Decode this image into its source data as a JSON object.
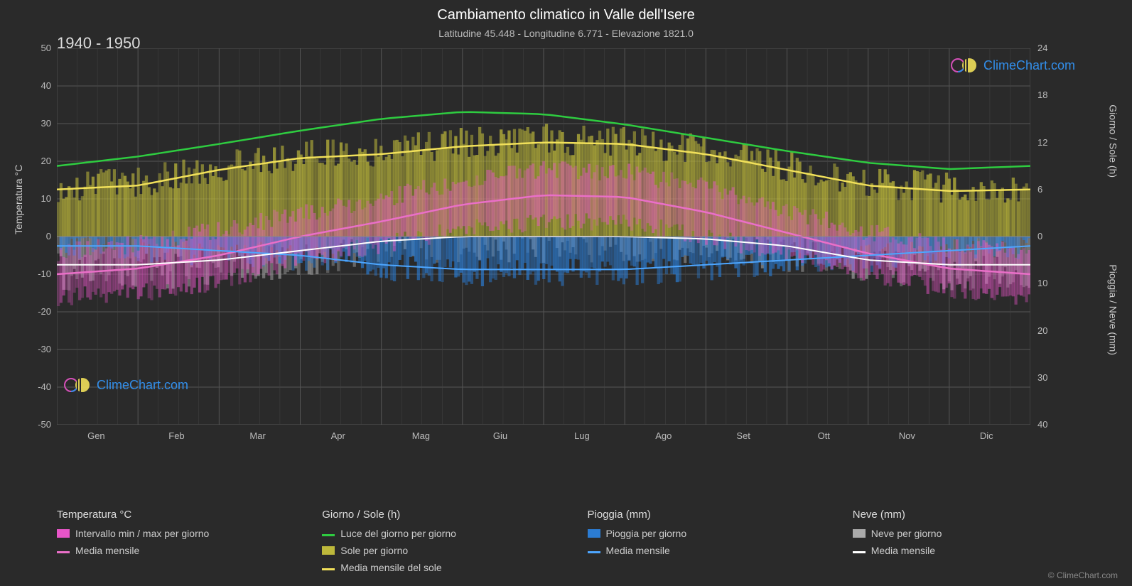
{
  "title": "Cambiamento climatico in Valle dell'Isere",
  "subtitle": "Latitudine 45.448 - Longitudine 6.771 - Elevazione 1821.0",
  "year_range": "1940 - 1950",
  "watermark_text": "ClimeChart.com",
  "copyright": "© ClimeChart.com",
  "axis_left": {
    "label": "Temperatura °C",
    "min": -50,
    "max": 50,
    "ticks": [
      -50,
      -40,
      -30,
      -20,
      -10,
      0,
      10,
      20,
      30,
      40,
      50
    ]
  },
  "axis_right_top": {
    "label": "Giorno / Sole (h)",
    "ticks": [
      0,
      6,
      12,
      18,
      24
    ]
  },
  "axis_right_bottom": {
    "label": "Pioggia / Neve (mm)",
    "ticks": [
      0,
      10,
      20,
      30,
      40
    ]
  },
  "months": [
    "Gen",
    "Feb",
    "Mar",
    "Apr",
    "Mag",
    "Giu",
    "Lug",
    "Ago",
    "Set",
    "Ott",
    "Nov",
    "Dic"
  ],
  "colors": {
    "background": "#2a2a2a",
    "grid": "#555555",
    "grid_minor": "#444444",
    "text": "#cccccc",
    "daylight_line": "#2ecc40",
    "sun_line": "#f1e05a",
    "sun_bars": "#bdb83b",
    "temp_range": "#e855c8",
    "temp_line": "#ea6fc8",
    "rain_bars": "#2b7cd3",
    "rain_line": "#4da6ff",
    "snow_bars": "#aaaaaa",
    "snow_line": "#ffffff",
    "watermark_text": "#3399ff"
  },
  "series": {
    "daylight_h": [
      9.0,
      10.2,
      11.8,
      13.5,
      15.0,
      15.9,
      15.6,
      14.3,
      12.6,
      10.9,
      9.4,
      8.6
    ],
    "sun_h": [
      6.0,
      6.5,
      8.5,
      10.0,
      10.5,
      11.5,
      12.0,
      11.8,
      10.5,
      8.5,
      6.5,
      5.8
    ],
    "temp_max_c": [
      -4,
      -2,
      2,
      6,
      10,
      15,
      18,
      17,
      13,
      7,
      1,
      -3
    ],
    "temp_min_c": [
      -16,
      -15,
      -12,
      -6,
      -2,
      2,
      4,
      4,
      0,
      -5,
      -10,
      -14
    ],
    "temp_mean_c": [
      -10,
      -8.5,
      -5,
      0,
      4,
      8.5,
      11,
      10.5,
      6.5,
      1,
      -4.5,
      -8.5
    ],
    "rain_mm": [
      2,
      2,
      3,
      4,
      6,
      7,
      7,
      7,
      6,
      5,
      4,
      3
    ],
    "snow_mm": [
      6,
      6,
      5,
      3,
      1,
      0,
      0,
      0,
      0.5,
      2,
      5,
      6
    ]
  },
  "legend": {
    "col1": {
      "header": "Temperatura °C",
      "items": [
        {
          "swatch_type": "box",
          "color": "#e855c8",
          "label": "Intervallo min / max per giorno"
        },
        {
          "swatch_type": "line",
          "color": "#ea6fc8",
          "label": "Media mensile"
        }
      ]
    },
    "col2": {
      "header": "Giorno / Sole (h)",
      "items": [
        {
          "swatch_type": "line",
          "color": "#2ecc40",
          "label": "Luce del giorno per giorno"
        },
        {
          "swatch_type": "box",
          "color": "#bdb83b",
          "label": "Sole per giorno"
        },
        {
          "swatch_type": "line",
          "color": "#f1e05a",
          "label": "Media mensile del sole"
        }
      ]
    },
    "col3": {
      "header": "Pioggia (mm)",
      "items": [
        {
          "swatch_type": "box",
          "color": "#2b7cd3",
          "label": "Pioggia per giorno"
        },
        {
          "swatch_type": "line",
          "color": "#4da6ff",
          "label": "Media mensile"
        }
      ]
    },
    "col4": {
      "header": "Neve (mm)",
      "items": [
        {
          "swatch_type": "box",
          "color": "#aaaaaa",
          "label": "Neve per giorno"
        },
        {
          "swatch_type": "line",
          "color": "#ffffff",
          "label": "Media mensile"
        }
      ]
    }
  }
}
